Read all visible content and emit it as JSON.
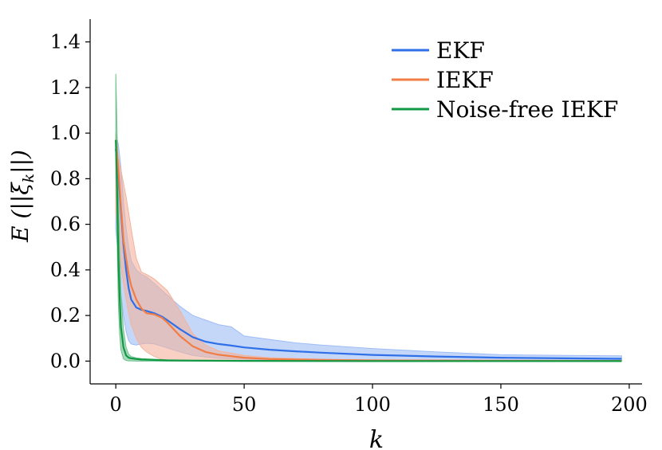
{
  "chart_data": {
    "type": "line",
    "xlabel": "k",
    "ylabel": "E (||ξ_k||)",
    "ylabel_parts": {
      "pre": "E (||ξ",
      "sub": "k",
      "post": "||)"
    },
    "xlim": [
      -10,
      205
    ],
    "ylim": [
      -0.1,
      1.5
    ],
    "xticks": [
      0,
      50,
      100,
      150,
      200
    ],
    "xtick_labels": [
      "0",
      "50",
      "100",
      "150",
      "200"
    ],
    "yticks": [
      0.0,
      0.2,
      0.4,
      0.6,
      0.8,
      1.0,
      1.2,
      1.4
    ],
    "ytick_labels": [
      "0.0",
      "0.2",
      "0.4",
      "0.6",
      "0.8",
      "1.0",
      "1.2",
      "1.4"
    ],
    "grid": false,
    "legend_position": "top-right",
    "series": [
      {
        "name": "EKF",
        "color": "#2f6fe8",
        "band_color": "#9dbcf5",
        "x": [
          0,
          1,
          2,
          3,
          4,
          5,
          6,
          8,
          10,
          12,
          15,
          18,
          20,
          25,
          30,
          35,
          40,
          45,
          50,
          60,
          70,
          80,
          100,
          125,
          150,
          175,
          197
        ],
        "mean": [
          0.93,
          0.82,
          0.66,
          0.51,
          0.4,
          0.32,
          0.27,
          0.235,
          0.225,
          0.22,
          0.21,
          0.195,
          0.18,
          0.14,
          0.105,
          0.085,
          0.075,
          0.068,
          0.06,
          0.05,
          0.043,
          0.037,
          0.027,
          0.02,
          0.015,
          0.012,
          0.01
        ],
        "lower": [
          0.58,
          0.45,
          0.3,
          0.2,
          0.13,
          0.09,
          0.075,
          0.07,
          0.075,
          0.078,
          0.075,
          0.065,
          0.058,
          0.04,
          0.025,
          0.018,
          0.013,
          0.01,
          0.008,
          0.006,
          0.005,
          0.004,
          0.003,
          0.002,
          0.002,
          0.001,
          0.001
        ],
        "upper": [
          1.0,
          0.95,
          0.85,
          0.7,
          0.58,
          0.5,
          0.44,
          0.4,
          0.38,
          0.37,
          0.34,
          0.31,
          0.29,
          0.24,
          0.2,
          0.18,
          0.16,
          0.15,
          0.11,
          0.095,
          0.08,
          0.07,
          0.055,
          0.04,
          0.028,
          0.025,
          0.023
        ]
      },
      {
        "name": "IEKF",
        "color": "#f07d45",
        "band_color": "#f3b39c",
        "x": [
          0,
          1,
          2,
          3,
          4,
          5,
          6,
          8,
          10,
          12,
          15,
          18,
          20,
          25,
          30,
          35,
          40,
          50,
          60,
          80,
          100,
          150,
          197
        ],
        "mean": [
          0.97,
          0.84,
          0.68,
          0.53,
          0.45,
          0.38,
          0.33,
          0.27,
          0.23,
          0.21,
          0.205,
          0.19,
          0.17,
          0.11,
          0.065,
          0.04,
          0.028,
          0.015,
          0.009,
          0.005,
          0.003,
          0.002,
          0.001
        ],
        "lower": [
          0.66,
          0.52,
          0.42,
          0.34,
          0.27,
          0.21,
          0.16,
          0.1,
          0.06,
          0.04,
          0.02,
          0.008,
          0.005,
          0.003,
          0.002,
          0.001,
          0.001,
          0.001,
          0.0,
          0.0,
          0.0,
          0.0,
          0.0
        ],
        "upper": [
          1.0,
          0.89,
          0.84,
          0.78,
          0.72,
          0.65,
          0.58,
          0.45,
          0.39,
          0.38,
          0.36,
          0.33,
          0.31,
          0.22,
          0.12,
          0.07,
          0.045,
          0.025,
          0.015,
          0.008,
          0.005,
          0.003,
          0.002
        ]
      },
      {
        "name": "Noise-free IEKF",
        "color": "#119944",
        "band_color": "#6fc08d",
        "x": [
          0,
          0.5,
          1,
          1.5,
          2,
          3,
          4,
          5,
          6,
          8,
          10,
          15,
          20,
          30,
          50,
          100,
          150,
          197
        ],
        "mean": [
          0.97,
          0.75,
          0.45,
          0.28,
          0.15,
          0.06,
          0.025,
          0.015,
          0.012,
          0.009,
          0.007,
          0.005,
          0.003,
          0.002,
          0.001,
          0.0,
          0.0,
          0.0
        ],
        "lower": [
          0.94,
          0.55,
          0.25,
          0.12,
          0.05,
          0.01,
          0.003,
          0.001,
          0.001,
          0.0,
          0.0,
          0.0,
          0.0,
          0.0,
          0.0,
          0.0,
          0.0,
          0.0
        ],
        "upper": [
          1.26,
          1.0,
          0.72,
          0.48,
          0.3,
          0.14,
          0.06,
          0.03,
          0.02,
          0.014,
          0.011,
          0.008,
          0.006,
          0.004,
          0.002,
          0.001,
          0.001,
          0.001
        ]
      }
    ]
  }
}
